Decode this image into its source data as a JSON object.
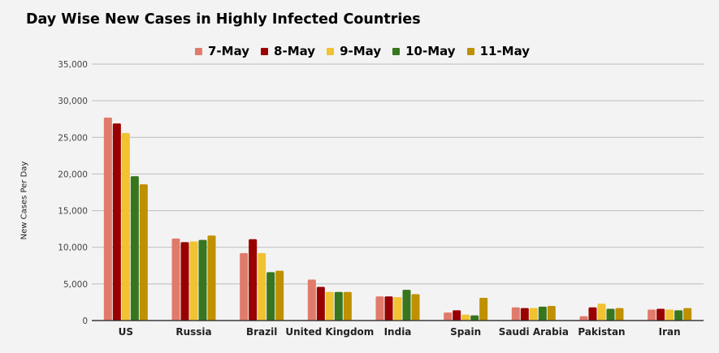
{
  "chart_data": {
    "type": "bar",
    "title": "Day Wise New Cases in Highly Infected Countries",
    "xlabel": "",
    "ylabel": "New Cases Per Day",
    "ylim": [
      0,
      35000
    ],
    "yticks": [
      0,
      5000,
      10000,
      15000,
      20000,
      25000,
      30000,
      35000
    ],
    "ytick_labels": [
      "0",
      "5,000",
      "10,000",
      "15,000",
      "20,000",
      "25,000",
      "30,000",
      "35,000"
    ],
    "grid": true,
    "legend_position": "top",
    "categories": [
      "US",
      "Russia",
      "Brazil",
      "United Kingdom",
      "India",
      "Spain",
      "Saudi Arabia",
      "Pakistan",
      "Iran"
    ],
    "series": [
      {
        "name": "7-May",
        "color": "#e07b6b",
        "values": [
          27700,
          11200,
          9200,
          5600,
          3300,
          1100,
          1800,
          600,
          1500
        ]
      },
      {
        "name": "8-May",
        "color": "#990000",
        "values": [
          26900,
          10700,
          11100,
          4600,
          3300,
          1400,
          1700,
          1800,
          1600
        ]
      },
      {
        "name": "9-May",
        "color": "#f1c232",
        "values": [
          25600,
          10800,
          9200,
          3900,
          3200,
          800,
          1700,
          2300,
          1500
        ]
      },
      {
        "name": "10-May",
        "color": "#38761d",
        "values": [
          19700,
          11000,
          6600,
          3900,
          4200,
          700,
          1900,
          1600,
          1400
        ]
      },
      {
        "name": "11-May",
        "color": "#bf9000",
        "values": [
          18600,
          11600,
          6800,
          3900,
          3600,
          3100,
          2000,
          1700,
          1700
        ]
      }
    ]
  }
}
